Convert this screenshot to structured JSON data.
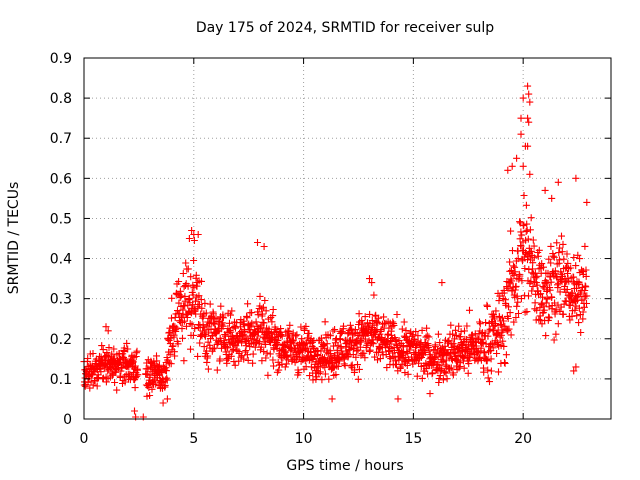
{
  "chart_data": {
    "type": "scatter",
    "title": "Day 175 of 2024, SRMTID for receiver sulp",
    "xlabel": "GPS time / hours",
    "ylabel": "SRMTID / TECUs",
    "xlim": [
      0,
      24
    ],
    "ylim": [
      0,
      0.9
    ],
    "x_ticks": [
      0,
      5,
      10,
      15,
      20
    ],
    "x_tick_labels": [
      "0",
      "5",
      "10",
      "15",
      "20"
    ],
    "y_ticks": [
      0,
      0.1,
      0.2,
      0.3,
      0.4,
      0.5,
      0.6,
      0.7,
      0.8,
      0.9
    ],
    "y_tick_labels": [
      "0",
      "0.1",
      "0.2",
      "0.3",
      "0.4",
      "0.5",
      "0.6",
      "0.7",
      "0.8",
      "0.9"
    ],
    "grid": true,
    "marker": "plus",
    "color": "#ff0000",
    "trend": {
      "x": [
        0,
        0.5,
        1,
        1.5,
        2,
        2.4,
        2.8,
        3.3,
        3.7,
        4.0,
        4.5,
        5.0,
        5.5,
        6.0,
        7.0,
        8.0,
        9.0,
        10.0,
        11.0,
        12.0,
        13.0,
        14.0,
        15.0,
        16.0,
        17.0,
        18.0,
        19.0,
        19.5,
        20.0,
        20.5,
        21.0,
        21.5,
        22.0,
        22.5,
        22.9
      ],
      "y": [
        0.11,
        0.12,
        0.14,
        0.13,
        0.14,
        0.12,
        0.11,
        0.12,
        0.1,
        0.22,
        0.28,
        0.31,
        0.22,
        0.21,
        0.2,
        0.23,
        0.18,
        0.17,
        0.16,
        0.18,
        0.21,
        0.18,
        0.17,
        0.15,
        0.17,
        0.18,
        0.22,
        0.33,
        0.42,
        0.36,
        0.32,
        0.35,
        0.33,
        0.3,
        0.36
      ],
      "spread": [
        0.025,
        0.03,
        0.035,
        0.035,
        0.03,
        0.03,
        0.03,
        0.03,
        0.03,
        0.07,
        0.08,
        0.08,
        0.06,
        0.05,
        0.05,
        0.06,
        0.04,
        0.04,
        0.04,
        0.045,
        0.05,
        0.045,
        0.045,
        0.04,
        0.045,
        0.05,
        0.07,
        0.1,
        0.11,
        0.09,
        0.08,
        0.08,
        0.07,
        0.06,
        0.06
      ]
    },
    "highlight_points": [
      {
        "x": 20.0,
        "y": 0.8
      },
      {
        "x": 20.2,
        "y": 0.83
      },
      {
        "x": 20.25,
        "y": 0.81
      },
      {
        "x": 20.3,
        "y": 0.79
      },
      {
        "x": 19.9,
        "y": 0.75
      },
      {
        "x": 20.2,
        "y": 0.75
      },
      {
        "x": 20.25,
        "y": 0.74
      },
      {
        "x": 19.9,
        "y": 0.71
      },
      {
        "x": 20.1,
        "y": 0.68
      },
      {
        "x": 20.2,
        "y": 0.68
      },
      {
        "x": 19.7,
        "y": 0.65
      },
      {
        "x": 20.0,
        "y": 0.63
      },
      {
        "x": 19.5,
        "y": 0.63
      },
      {
        "x": 20.3,
        "y": 0.61
      },
      {
        "x": 19.3,
        "y": 0.62
      },
      {
        "x": 22.4,
        "y": 0.6
      },
      {
        "x": 21.6,
        "y": 0.59
      },
      {
        "x": 21.0,
        "y": 0.57
      },
      {
        "x": 22.9,
        "y": 0.54
      },
      {
        "x": 21.3,
        "y": 0.55
      },
      {
        "x": 4.9,
        "y": 0.47
      },
      {
        "x": 5.0,
        "y": 0.46
      },
      {
        "x": 5.2,
        "y": 0.46
      },
      {
        "x": 4.8,
        "y": 0.45
      },
      {
        "x": 7.9,
        "y": 0.44
      },
      {
        "x": 8.2,
        "y": 0.43
      },
      {
        "x": 13.0,
        "y": 0.35
      },
      {
        "x": 13.1,
        "y": 0.34
      },
      {
        "x": 16.3,
        "y": 0.34
      },
      {
        "x": 2.3,
        "y": 0.02
      },
      {
        "x": 2.35,
        "y": 0.005
      },
      {
        "x": 2.7,
        "y": 0.005
      },
      {
        "x": 3.8,
        "y": 0.05
      },
      {
        "x": 3.6,
        "y": 0.04
      },
      {
        "x": 11.3,
        "y": 0.05
      },
      {
        "x": 14.3,
        "y": 0.05
      },
      {
        "x": 22.3,
        "y": 0.12
      },
      {
        "x": 22.4,
        "y": 0.13
      },
      {
        "x": 1.0,
        "y": 0.23
      },
      {
        "x": 1.1,
        "y": 0.22
      }
    ]
  }
}
